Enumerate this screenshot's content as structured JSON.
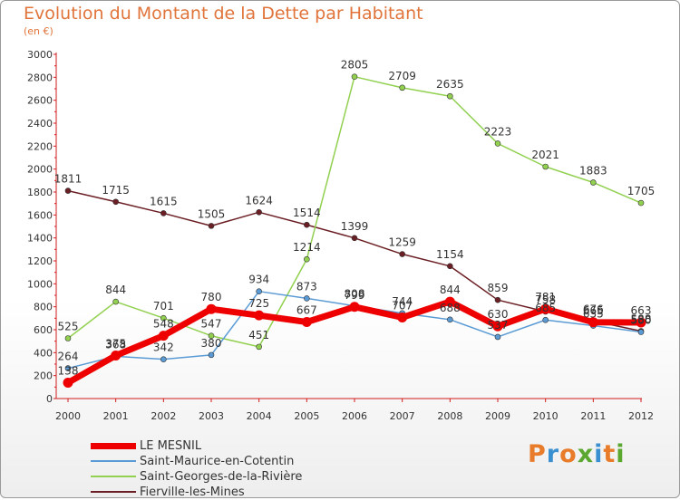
{
  "title": "Evolution du Montant de la Dette par Habitant",
  "subtitle": "(en €)",
  "logo": {
    "text": "Proxiti",
    "letter_colors": [
      "#e87c2a",
      "#3a8fd0",
      "#e87c2a",
      "#5aa830",
      "#3a8fd0",
      "#e87c2a",
      "#5aa830"
    ]
  },
  "chart_data": {
    "type": "line",
    "title": "Evolution du Montant de la Dette par Habitant",
    "subtitle": "(en €)",
    "x": [
      "2000",
      "2001",
      "2002",
      "2003",
      "2004",
      "2005",
      "2006",
      "2007",
      "2008",
      "2009",
      "2010",
      "2011",
      "2012"
    ],
    "ylim": [
      0,
      3000
    ],
    "yticks": [
      0,
      200,
      400,
      600,
      800,
      1000,
      1200,
      1400,
      1600,
      1800,
      2000,
      2200,
      2400,
      2600,
      2800,
      3000
    ],
    "grid": false,
    "legend_position": "bottom-left",
    "series": [
      {
        "name": "LE MESNIL",
        "color": "#ee0000",
        "width": 7,
        "values": [
          138,
          375,
          548,
          780,
          725,
          667,
          799,
          707,
          844,
          630,
          781,
          665,
          663
        ]
      },
      {
        "name": "Saint-Maurice-en-Cotentin",
        "color": "#5b9bd5",
        "width": 1.5,
        "values": [
          264,
          368,
          342,
          380,
          934,
          873,
          808,
          744,
          688,
          537,
          685,
          635,
          580
        ]
      },
      {
        "name": "Saint-Georges-de-la-Rivière",
        "color": "#92d050",
        "width": 1.5,
        "values": [
          525,
          844,
          701,
          547,
          451,
          1214,
          2805,
          2709,
          2635,
          2223,
          2021,
          1883,
          1705
        ]
      },
      {
        "name": "Fierville-les-Mines",
        "color": "#6b1f24",
        "width": 1.5,
        "values": [
          1811,
          1715,
          1615,
          1505,
          1624,
          1514,
          1399,
          1259,
          1154,
          859,
          758,
          676,
          588
        ]
      }
    ]
  }
}
